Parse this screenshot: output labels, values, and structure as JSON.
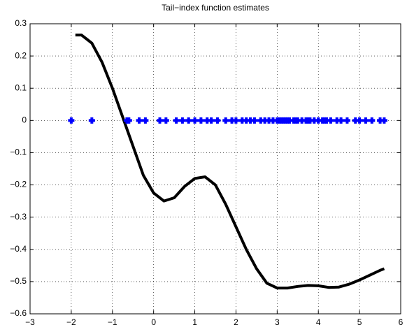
{
  "chart_data": {
    "type": "line",
    "title": "Tail−index function estimates",
    "xlim": [
      -3,
      6
    ],
    "ylim": [
      -0.6,
      0.3
    ],
    "xticks": [
      {
        "value": -3,
        "label": "−3"
      },
      {
        "value": -2,
        "label": "−2"
      },
      {
        "value": -1,
        "label": "−1"
      },
      0,
      1,
      2,
      3,
      4,
      5,
      6
    ],
    "yticks": [
      {
        "value": -0.6,
        "label": "−0.6"
      },
      {
        "value": -0.5,
        "label": "−0.5"
      },
      {
        "value": -0.4,
        "label": "−0.4"
      },
      {
        "value": -0.3,
        "label": "−0.3"
      },
      {
        "value": -0.2,
        "label": "−0.2"
      },
      {
        "value": -0.1,
        "label": "−0.1"
      },
      0,
      0.1,
      0.2,
      0.3
    ],
    "grid": true,
    "series": [
      {
        "mode": "line",
        "color": "#000000",
        "x": [
          -1.9,
          -1.75,
          -1.5,
          -1.25,
          -1.0,
          -0.75,
          -0.5,
          -0.25,
          0,
          0.25,
          0.5,
          0.75,
          1.0,
          1.25,
          1.5,
          1.75,
          2.0,
          2.25,
          2.5,
          2.75,
          3.0,
          3.25,
          3.5,
          3.75,
          4.0,
          4.25,
          4.5,
          4.75,
          5.0,
          5.25,
          5.5,
          5.6
        ],
        "values": [
          0.265,
          0.265,
          0.24,
          0.18,
          0.1,
          0.01,
          -0.08,
          -0.17,
          -0.225,
          -0.25,
          -0.24,
          -0.205,
          -0.18,
          -0.175,
          -0.2,
          -0.26,
          -0.33,
          -0.4,
          -0.46,
          -0.505,
          -0.52,
          -0.52,
          -0.515,
          -0.512,
          -0.513,
          -0.518,
          -0.517,
          -0.508,
          -0.495,
          -0.48,
          -0.465,
          -0.46
        ]
      },
      {
        "mode": "markers",
        "color": "#0000ff",
        "x": [
          -2.0,
          -1.5,
          -0.65,
          -0.6,
          -0.35,
          -0.2,
          0.15,
          0.3,
          0.55,
          0.7,
          0.85,
          1.0,
          1.15,
          1.3,
          1.4,
          1.55,
          1.75,
          1.9,
          2.0,
          2.15,
          2.25,
          2.35,
          2.45,
          2.6,
          2.7,
          2.8,
          2.9,
          3.0,
          3.05,
          3.1,
          3.15,
          3.2,
          3.25,
          3.3,
          3.4,
          3.45,
          3.5,
          3.6,
          3.7,
          3.75,
          3.8,
          3.9,
          4.0,
          4.1,
          4.15,
          4.2,
          4.3,
          4.45,
          4.55,
          4.7,
          4.9,
          5.0,
          5.15,
          5.3,
          5.5,
          5.6
        ],
        "values": [
          0,
          0,
          0,
          0,
          0,
          0,
          0,
          0,
          0,
          0,
          0,
          0,
          0,
          0,
          0,
          0,
          0,
          0,
          0,
          0,
          0,
          0,
          0,
          0,
          0,
          0,
          0,
          0,
          0,
          0,
          0,
          0,
          0,
          0,
          0,
          0,
          0,
          0,
          0,
          0,
          0,
          0,
          0,
          0,
          0,
          0,
          0,
          0,
          0,
          0,
          0,
          0,
          0,
          0,
          0,
          0
        ]
      }
    ]
  }
}
